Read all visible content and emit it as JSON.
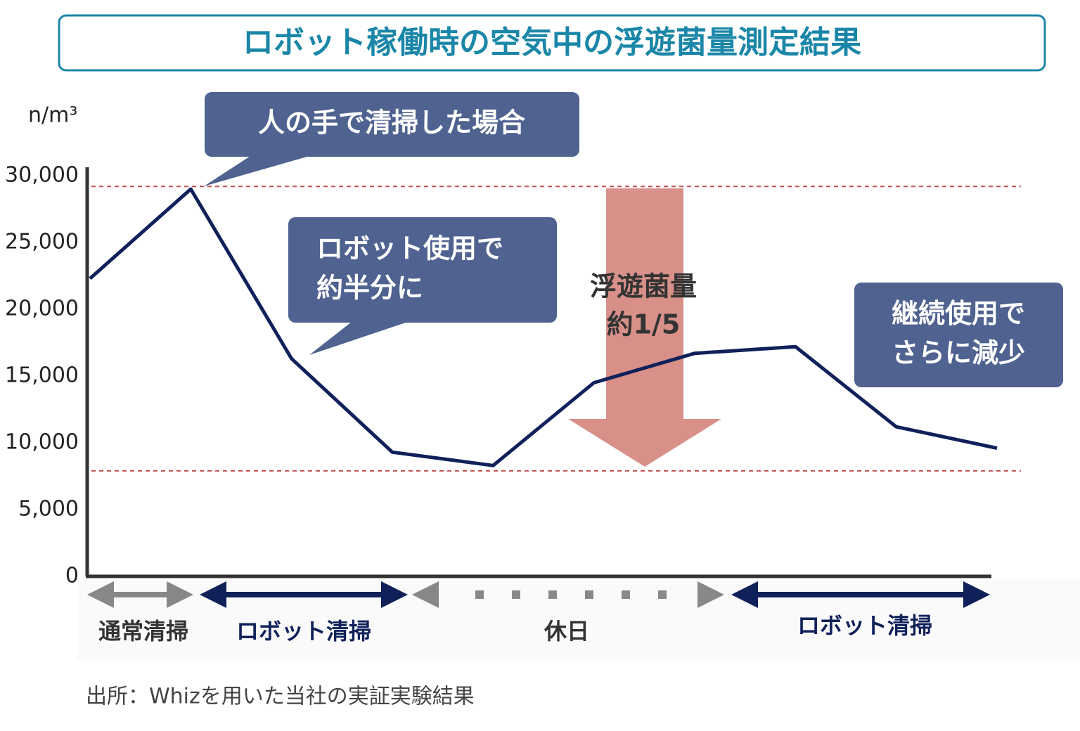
{
  "chart_data": {
    "type": "line",
    "title": "ロボット稼働時の空気中の浮遊菌量測定結果",
    "y_label": "n/m³",
    "categories": [
      null,
      null,
      null,
      null,
      null,
      null,
      null,
      null,
      null,
      null
    ],
    "series": [
      {
        "color": "#10215a",
        "values": [
          22300,
          29000,
          16300,
          9300,
          8300,
          14500,
          16700,
          17200,
          11200,
          9600
        ]
      }
    ],
    "ylim": [
      0,
      30000
    ],
    "yticks": [
      0,
      {
        "value": 5000,
        "label": "5,000"
      },
      {
        "value": 10000,
        "label": "10,000"
      },
      {
        "value": 15000,
        "label": "15,000"
      },
      {
        "value": 20000,
        "label": "20,000"
      },
      {
        "value": 25000,
        "label": "25,000"
      },
      {
        "value": 30000,
        "label": "30,000"
      }
    ],
    "reference_lines": [
      29200,
      7900
    ],
    "annotations": [
      {
        "lines": [
          "人の手で清掃した場合"
        ]
      },
      {
        "lines": [
          "ロボット使用で",
          "約半分に"
        ]
      },
      {
        "lines": [
          "継続使用で",
          "さらに減少"
        ]
      },
      {
        "lines": [
          "浮遊菌量",
          "約1/5"
        ]
      }
    ],
    "phases": [
      "通常清掃",
      "ロボット清掃",
      "休日",
      "ロボット清掃"
    ],
    "source": "出所：Whizを用いた当社の実証実験結果"
  }
}
